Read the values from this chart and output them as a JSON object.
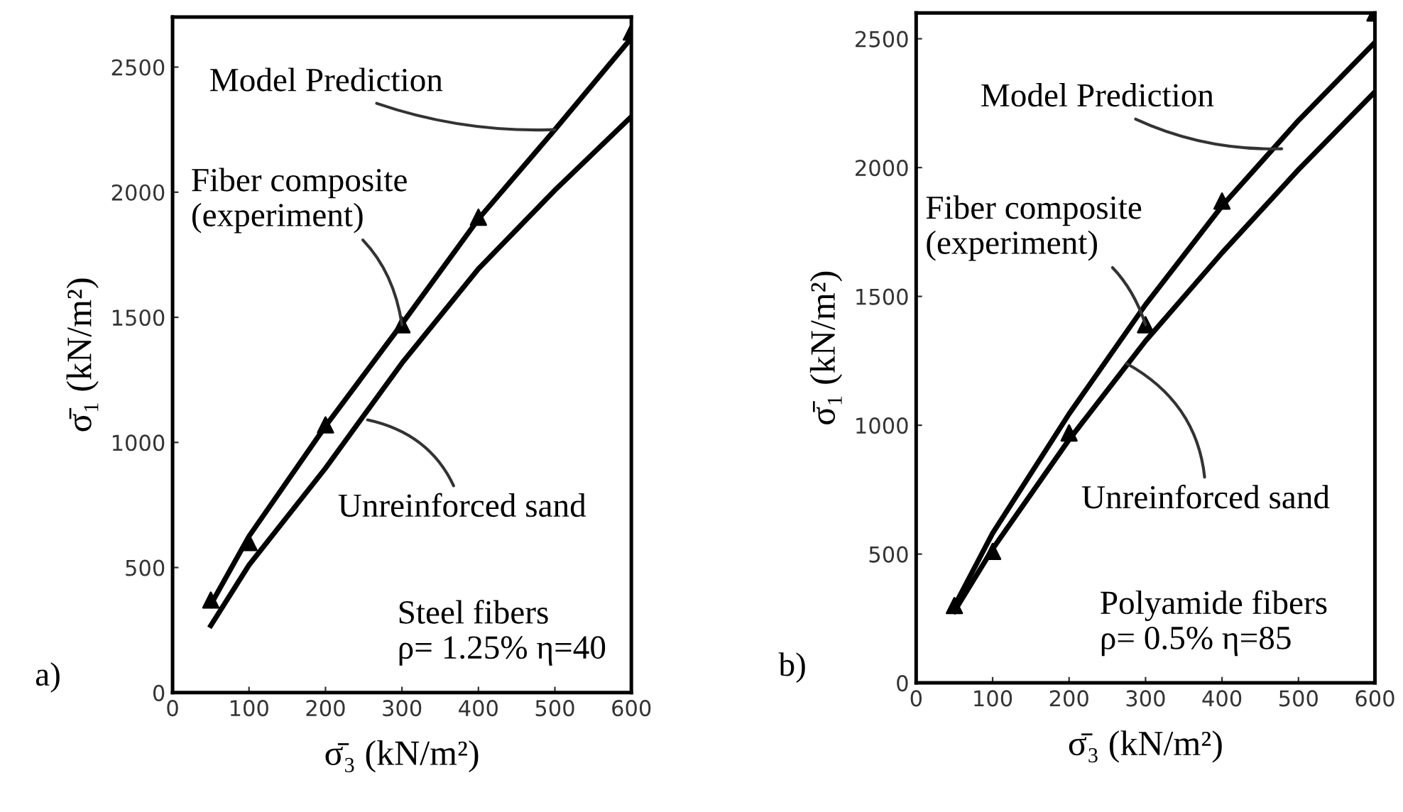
{
  "chart_data": [
    {
      "type": "line",
      "xlabel": "σ̄₃ (kN/m²)",
      "ylabel": "σ̄₁ (kN/m²)",
      "xlim": [
        0,
        600
      ],
      "ylim": [
        0,
        2700
      ],
      "xticks": [
        0,
        100,
        200,
        300,
        400,
        500,
        600
      ],
      "yticks": [
        0,
        500,
        1000,
        1500,
        2000,
        2500
      ],
      "grid": false,
      "legend": false,
      "series": [
        {
          "color": "#000000",
          "x": [
            50,
            100,
            200,
            300,
            400,
            500,
            600
          ],
          "values": [
            352,
            625,
            1065,
            1474,
            1893,
            2250,
            2616
          ]
        },
        {
          "color": "#000000",
          "x": [
            50,
            100,
            200,
            300,
            400,
            500,
            600
          ],
          "values": [
            268,
            510,
            897,
            1317,
            1694,
            2008,
            2302
          ]
        },
        {
          "type": "scatter",
          "marker": "triangle",
          "color": "#000000",
          "x": [
            50,
            100,
            200,
            300,
            400,
            600
          ],
          "values": [
            370,
            600,
            1070,
            1470,
            1900,
            2640
          ]
        }
      ],
      "annotations": [
        {
          "text": "Model Prediction",
          "x": 500,
          "y": 2250
        },
        {
          "text": "Fiber composite\n(experiment)",
          "x": 300,
          "y": 1470
        },
        {
          "text": "Unreinforced sand",
          "x": 255,
          "y": 1090
        },
        "Steel fibers\nρ= 1.25% η=40",
        "a)"
      ]
    },
    {
      "type": "line",
      "xlabel": "σ̄₃ (kN/m²)",
      "ylabel": "σ̄₁ (kN/m²)",
      "xlim": [
        0,
        600
      ],
      "ylim": [
        0,
        2600
      ],
      "xticks": [
        0,
        100,
        200,
        300,
        400,
        500,
        600
      ],
      "yticks": [
        0,
        500,
        1000,
        1500,
        2000,
        2500
      ],
      "grid": false,
      "legend": false,
      "series": [
        {
          "color": "#000000",
          "x": [
            50,
            100,
            200,
            300,
            400,
            500,
            600
          ],
          "values": [
            298,
            581,
            1044,
            1468,
            1851,
            2183,
            2486
          ]
        },
        {
          "color": "#000000",
          "x": [
            50,
            100,
            200,
            300,
            400,
            500,
            600
          ],
          "values": [
            278,
            520,
            944,
            1327,
            1669,
            1992,
            2294
          ]
        },
        {
          "type": "scatter",
          "marker": "triangle",
          "color": "#000000",
          "x": [
            50,
            100,
            200,
            300,
            400,
            600
          ],
          "values": [
            300,
            510,
            970,
            1390,
            1870,
            2600
          ]
        }
      ],
      "annotations": [
        {
          "text": "Model Prediction",
          "x": 478,
          "y": 2073
        },
        {
          "text": "Fiber composite\n(experiment)",
          "x": 300,
          "y": 1390
        },
        {
          "text": "Unreinforced sand",
          "x": 275,
          "y": 1240
        },
        "Polyamide fibers\nρ= 0.5% η=85",
        "b)"
      ]
    }
  ]
}
